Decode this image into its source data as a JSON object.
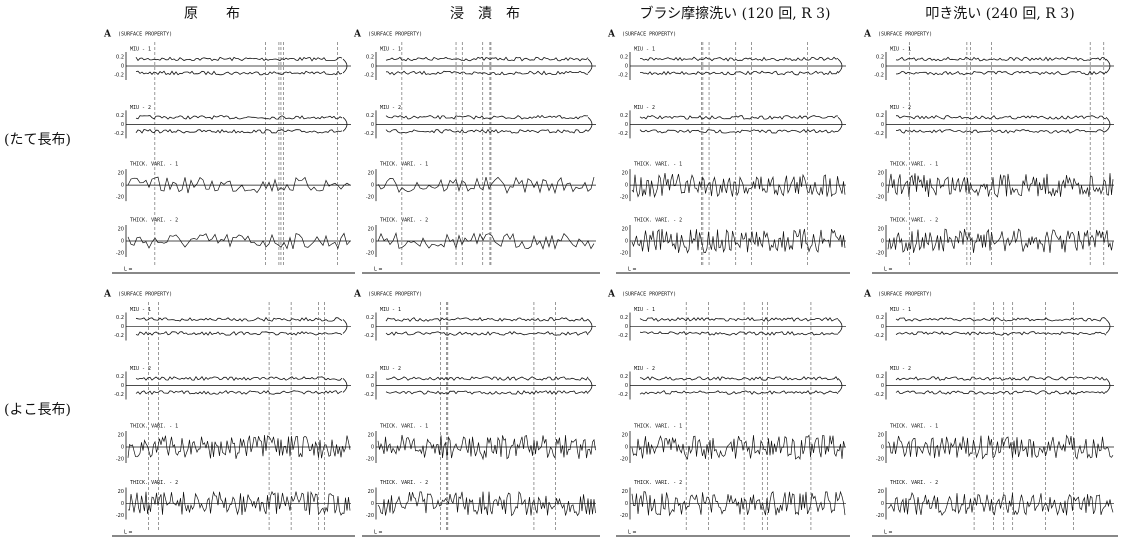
{
  "columns": [
    "原　　布",
    "浸　漬　布",
    "ブラシ摩擦洗い (120 回, R 3)",
    "叩き洗い (240 回, R 3)"
  ],
  "rows": [
    "(たて長布)",
    "(よこ長布)"
  ],
  "panel": {
    "letter": "A",
    "heading": "(SURFACE PROPERTY)",
    "traces": [
      "MIU - 1",
      "MIU - 2",
      "THICK. VARI. - 1",
      "THICK. VARI. - 2"
    ],
    "miu_ticks": [
      0.2,
      0,
      -0.2
    ],
    "thick_ticks": [
      20,
      0,
      -20
    ],
    "footer": "L ="
  }
}
